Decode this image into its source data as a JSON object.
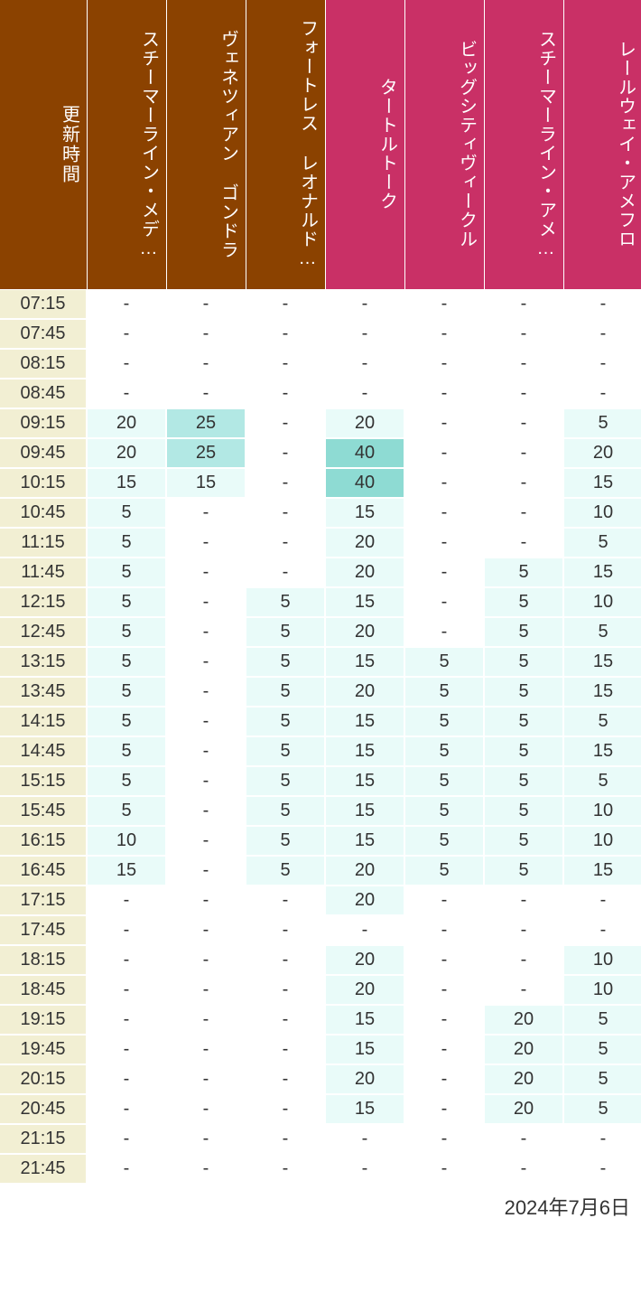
{
  "header": {
    "time_label": "更新時間",
    "columns": [
      {
        "label": "スチーマーライン・メデ…",
        "color_class": "header-brown"
      },
      {
        "label": "ヴェネツィアン ゴンドラ",
        "color_class": "header-brown"
      },
      {
        "label": "フォートレス レオナルド…",
        "color_class": "header-brown"
      },
      {
        "label": "タートルトーク",
        "color_class": "header-pink"
      },
      {
        "label": "ビッグシティヴィークル",
        "color_class": "header-pink"
      },
      {
        "label": "スチーマーライン・アメ…",
        "color_class": "header-pink"
      },
      {
        "label": "レールウェイ・アメフロ",
        "color_class": "header-pink"
      }
    ]
  },
  "colors": {
    "brown": "#8b4200",
    "pink": "#c93066",
    "time_bg": "#f2efd3",
    "shade0": "#ffffff",
    "shade1": "#e9fbf9",
    "shade2": "#b2e8e4",
    "shade3": "#8edbd3"
  },
  "shade_thresholds": {
    "s1_min": 5,
    "s2_min": 25,
    "s3_min": 40
  },
  "rows": [
    {
      "time": "07:15",
      "values": [
        "-",
        "-",
        "-",
        "-",
        "-",
        "-",
        "-"
      ]
    },
    {
      "time": "07:45",
      "values": [
        "-",
        "-",
        "-",
        "-",
        "-",
        "-",
        "-"
      ]
    },
    {
      "time": "08:15",
      "values": [
        "-",
        "-",
        "-",
        "-",
        "-",
        "-",
        "-"
      ]
    },
    {
      "time": "08:45",
      "values": [
        "-",
        "-",
        "-",
        "-",
        "-",
        "-",
        "-"
      ]
    },
    {
      "time": "09:15",
      "values": [
        "20",
        "25",
        "-",
        "20",
        "-",
        "-",
        "5"
      ]
    },
    {
      "time": "09:45",
      "values": [
        "20",
        "25",
        "-",
        "40",
        "-",
        "-",
        "20"
      ]
    },
    {
      "time": "10:15",
      "values": [
        "15",
        "15",
        "-",
        "40",
        "-",
        "-",
        "15"
      ]
    },
    {
      "time": "10:45",
      "values": [
        "5",
        "-",
        "-",
        "15",
        "-",
        "-",
        "10"
      ]
    },
    {
      "time": "11:15",
      "values": [
        "5",
        "-",
        "-",
        "20",
        "-",
        "-",
        "5"
      ]
    },
    {
      "time": "11:45",
      "values": [
        "5",
        "-",
        "-",
        "20",
        "-",
        "5",
        "15"
      ]
    },
    {
      "time": "12:15",
      "values": [
        "5",
        "-",
        "5",
        "15",
        "-",
        "5",
        "10"
      ]
    },
    {
      "time": "12:45",
      "values": [
        "5",
        "-",
        "5",
        "20",
        "-",
        "5",
        "5"
      ]
    },
    {
      "time": "13:15",
      "values": [
        "5",
        "-",
        "5",
        "15",
        "5",
        "5",
        "15"
      ]
    },
    {
      "time": "13:45",
      "values": [
        "5",
        "-",
        "5",
        "20",
        "5",
        "5",
        "15"
      ]
    },
    {
      "time": "14:15",
      "values": [
        "5",
        "-",
        "5",
        "15",
        "5",
        "5",
        "5"
      ]
    },
    {
      "time": "14:45",
      "values": [
        "5",
        "-",
        "5",
        "15",
        "5",
        "5",
        "15"
      ]
    },
    {
      "time": "15:15",
      "values": [
        "5",
        "-",
        "5",
        "15",
        "5",
        "5",
        "5"
      ]
    },
    {
      "time": "15:45",
      "values": [
        "5",
        "-",
        "5",
        "15",
        "5",
        "5",
        "10"
      ]
    },
    {
      "time": "16:15",
      "values": [
        "10",
        "-",
        "5",
        "15",
        "5",
        "5",
        "10"
      ]
    },
    {
      "time": "16:45",
      "values": [
        "15",
        "-",
        "5",
        "20",
        "5",
        "5",
        "15"
      ]
    },
    {
      "time": "17:15",
      "values": [
        "-",
        "-",
        "-",
        "20",
        "-",
        "-",
        "-"
      ]
    },
    {
      "time": "17:45",
      "values": [
        "-",
        "-",
        "-",
        "-",
        "-",
        "-",
        "-"
      ]
    },
    {
      "time": "18:15",
      "values": [
        "-",
        "-",
        "-",
        "20",
        "-",
        "-",
        "10"
      ]
    },
    {
      "time": "18:45",
      "values": [
        "-",
        "-",
        "-",
        "20",
        "-",
        "-",
        "10"
      ]
    },
    {
      "time": "19:15",
      "values": [
        "-",
        "-",
        "-",
        "15",
        "-",
        "20",
        "5"
      ]
    },
    {
      "time": "19:45",
      "values": [
        "-",
        "-",
        "-",
        "15",
        "-",
        "20",
        "5"
      ]
    },
    {
      "time": "20:15",
      "values": [
        "-",
        "-",
        "-",
        "20",
        "-",
        "20",
        "5"
      ]
    },
    {
      "time": "20:45",
      "values": [
        "-",
        "-",
        "-",
        "15",
        "-",
        "20",
        "5"
      ]
    },
    {
      "time": "21:15",
      "values": [
        "-",
        "-",
        "-",
        "-",
        "-",
        "-",
        "-"
      ]
    },
    {
      "time": "21:45",
      "values": [
        "-",
        "-",
        "-",
        "-",
        "-",
        "-",
        "-"
      ]
    }
  ],
  "footer_date": "2024年7月6日"
}
